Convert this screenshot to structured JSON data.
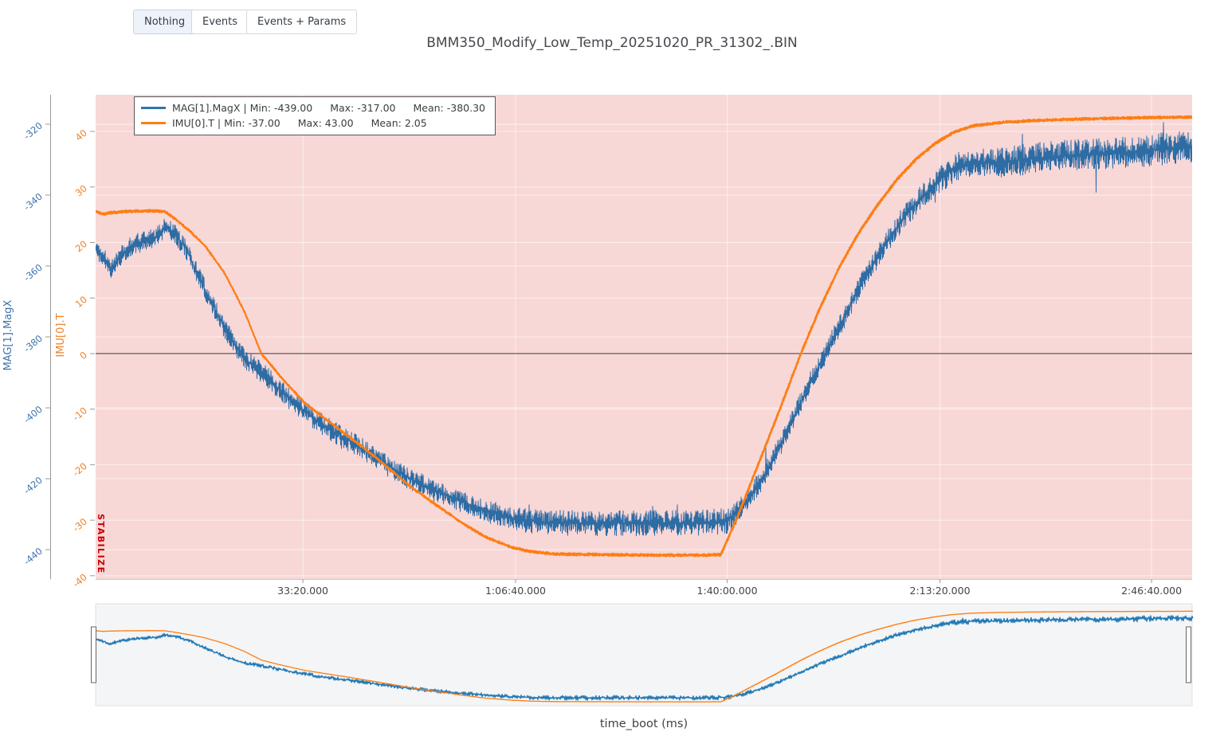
{
  "toolbar": {
    "buttons": [
      {
        "label": "Nothing",
        "active": true
      },
      {
        "label": "Events",
        "active": false
      },
      {
        "label": "Events + Params",
        "active": false
      }
    ]
  },
  "legend": {
    "entries": [
      {
        "color": "#3273ac",
        "label": "MAG[1].MagX | Min: -439.00",
        "max": "Max: -317.00",
        "mean": "Mean: -380.30"
      },
      {
        "color": "#fd7e14",
        "label": "IMU[0].T | Min: -37.00",
        "max": "Max: 43.00",
        "mean": "Mean: 2.05"
      }
    ]
  },
  "chart_data": {
    "type": "line",
    "title": "BMM350_Modify_Low_Temp_20251020_PR_31302_.BIN",
    "xlabel": "time_boot (ms)",
    "x_ticks": [
      {
        "label": "33:20.000",
        "f": 0.189
      },
      {
        "label": "1:06:40.000",
        "f": 0.383
      },
      {
        "label": "1:40:00.000",
        "f": 0.576
      },
      {
        "label": "2:13:20.000",
        "f": 0.77
      },
      {
        "label": "2:46:40.000",
        "f": 0.963
      }
    ],
    "axes": {
      "left": {
        "title": "MAG[1].MagX",
        "color": "#3f74ad",
        "range": [
          -448.3,
          -311.7
        ],
        "ticks": [
          -320,
          -340,
          -360,
          -380,
          -400,
          -420,
          -440
        ]
      },
      "right": {
        "title": "IMU[0].T",
        "color": "#ef7f24",
        "range": [
          -40.6,
          46.6
        ],
        "ticks": [
          40,
          30,
          20,
          10,
          0,
          -10,
          -20,
          -30,
          -40
        ],
        "zeroline": 0
      }
    },
    "mode_region": {
      "label": "STABILIZE",
      "text_color": "#c80000",
      "fill": "#f8d7d7",
      "f_start": 0,
      "f_end": 1
    },
    "grid": {
      "color": "rgba(255,255,255,0.6)",
      "zeroline_color": "#3a3a3a"
    },
    "series": [
      {
        "name": "MAG[1].MagX",
        "axis": "left",
        "color": "#2e6ca4",
        "nav_color": "#1f77b4",
        "stats": {
          "min": -439.0,
          "max": -317.0,
          "mean": -380.3
        },
        "seed": 1337,
        "spike_chance": 0.015,
        "spike_scale": 1.6,
        "noise_profile": [
          [
            0,
            3.0
          ],
          [
            0.05,
            2.8
          ],
          [
            0.1,
            3.0
          ],
          [
            0.35,
            3.2
          ],
          [
            0.42,
            3.6
          ],
          [
            0.57,
            3.6
          ],
          [
            0.63,
            2.8
          ],
          [
            0.74,
            3.2
          ],
          [
            0.79,
            4.3
          ],
          [
            1.0,
            4.6
          ]
        ],
        "keypoints": [
          [
            0.0,
            -355
          ],
          [
            0.006,
            -357
          ],
          [
            0.013,
            -361
          ],
          [
            0.02,
            -358
          ],
          [
            0.033,
            -354
          ],
          [
            0.046,
            -353
          ],
          [
            0.055,
            -352
          ],
          [
            0.064,
            -348.5
          ],
          [
            0.072,
            -351
          ],
          [
            0.082,
            -355
          ],
          [
            0.094,
            -363
          ],
          [
            0.105,
            -370
          ],
          [
            0.118,
            -378
          ],
          [
            0.135,
            -386
          ],
          [
            0.155,
            -391
          ],
          [
            0.175,
            -397
          ],
          [
            0.195,
            -402
          ],
          [
            0.213,
            -406
          ],
          [
            0.24,
            -411
          ],
          [
            0.265,
            -416
          ],
          [
            0.286,
            -420
          ],
          [
            0.31,
            -423.5
          ],
          [
            0.334,
            -426.5
          ],
          [
            0.36,
            -429.5
          ],
          [
            0.385,
            -431.5
          ],
          [
            0.41,
            -432.5
          ],
          [
            0.45,
            -432.5
          ],
          [
            0.5,
            -432.5
          ],
          [
            0.545,
            -432.5
          ],
          [
            0.575,
            -432
          ],
          [
            0.59,
            -428
          ],
          [
            0.61,
            -419
          ],
          [
            0.63,
            -407
          ],
          [
            0.648,
            -395
          ],
          [
            0.663,
            -386
          ],
          [
            0.68,
            -376
          ],
          [
            0.7,
            -364
          ],
          [
            0.718,
            -355
          ],
          [
            0.735,
            -347
          ],
          [
            0.752,
            -341
          ],
          [
            0.768,
            -336
          ],
          [
            0.782,
            -332.5
          ],
          [
            0.8,
            -331
          ],
          [
            0.83,
            -330.5
          ],
          [
            0.86,
            -329.5
          ],
          [
            0.9,
            -328.5
          ],
          [
            0.94,
            -328
          ],
          [
            0.97,
            -327
          ],
          [
            1.0,
            -326.5
          ]
        ]
      },
      {
        "name": "IMU[0].T",
        "axis": "right",
        "color": "#fd7e14",
        "nav_color": "#fd7e14",
        "stats": {
          "min": -37.0,
          "max": 43.0,
          "mean": 2.05
        },
        "seed": 99,
        "spike_chance": 0,
        "spike_scale": 0,
        "noise_profile": [
          [
            0,
            0.22
          ]
        ],
        "keypoints": [
          [
            0.0,
            25.7
          ],
          [
            0.006,
            25.1
          ],
          [
            0.015,
            25.4
          ],
          [
            0.03,
            25.6
          ],
          [
            0.05,
            25.7
          ],
          [
            0.063,
            25.6
          ],
          [
            0.072,
            24.3
          ],
          [
            0.085,
            22.2
          ],
          [
            0.1,
            19.3
          ],
          [
            0.118,
            14.3
          ],
          [
            0.135,
            7.8
          ],
          [
            0.151,
            0.0
          ],
          [
            0.17,
            -4.5
          ],
          [
            0.19,
            -8.8
          ],
          [
            0.213,
            -12.3
          ],
          [
            0.24,
            -16.3
          ],
          [
            0.265,
            -20.3
          ],
          [
            0.286,
            -23.8
          ],
          [
            0.31,
            -27.2
          ],
          [
            0.334,
            -30.5
          ],
          [
            0.355,
            -33.0
          ],
          [
            0.378,
            -34.8
          ],
          [
            0.395,
            -35.6
          ],
          [
            0.42,
            -36.1
          ],
          [
            0.46,
            -36.2
          ],
          [
            0.51,
            -36.3
          ],
          [
            0.555,
            -36.3
          ],
          [
            0.57,
            -36.2
          ],
          [
            0.585,
            -29.5
          ],
          [
            0.6,
            -22.0
          ],
          [
            0.62,
            -12.0
          ],
          [
            0.643,
            0.0
          ],
          [
            0.66,
            8.0
          ],
          [
            0.678,
            15.5
          ],
          [
            0.695,
            21.5
          ],
          [
            0.712,
            26.5
          ],
          [
            0.73,
            31.2
          ],
          [
            0.748,
            35.0
          ],
          [
            0.765,
            37.8
          ],
          [
            0.782,
            39.8
          ],
          [
            0.8,
            41.0
          ],
          [
            0.825,
            41.6
          ],
          [
            0.86,
            42.0
          ],
          [
            0.91,
            42.3
          ],
          [
            0.96,
            42.5
          ],
          [
            1.0,
            42.6
          ]
        ]
      }
    ]
  }
}
